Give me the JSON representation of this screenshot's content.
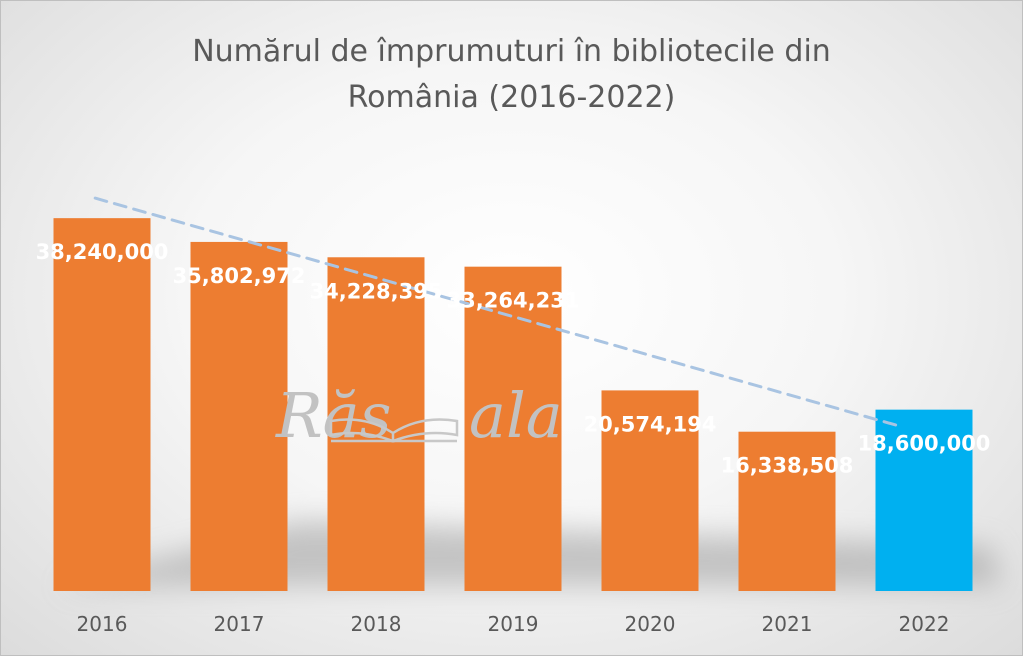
{
  "chart_data": {
    "type": "bar",
    "title_lines": [
      "Numărul de împrumuturi în bibliotecile din",
      "România (2016-2022)"
    ],
    "categories": [
      "2016",
      "2017",
      "2018",
      "2019",
      "2020",
      "2021",
      "2022"
    ],
    "values": [
      38240000,
      35802972,
      34228395,
      33264231,
      20574194,
      16338508,
      18600000
    ],
    "value_labels": [
      "38,240,000",
      "35,802,972",
      "34,228,395",
      "33,264,231",
      "20,574,194",
      "16,338,508",
      "18,600,000"
    ],
    "bar_colors": [
      "#ed7d31",
      "#ed7d31",
      "#ed7d31",
      "#ed7d31",
      "#ed7d31",
      "#ed7d31",
      "#00b0f0"
    ],
    "trendline": {
      "type": "linear",
      "style": "dashed",
      "color": "#a9c4e2"
    },
    "ylim": [
      0,
      40000000
    ],
    "grid": false,
    "legend": "none",
    "xlabel": "",
    "ylabel": ""
  },
  "watermark": {
    "left_text": "Răs",
    "right_text": "ala"
  }
}
